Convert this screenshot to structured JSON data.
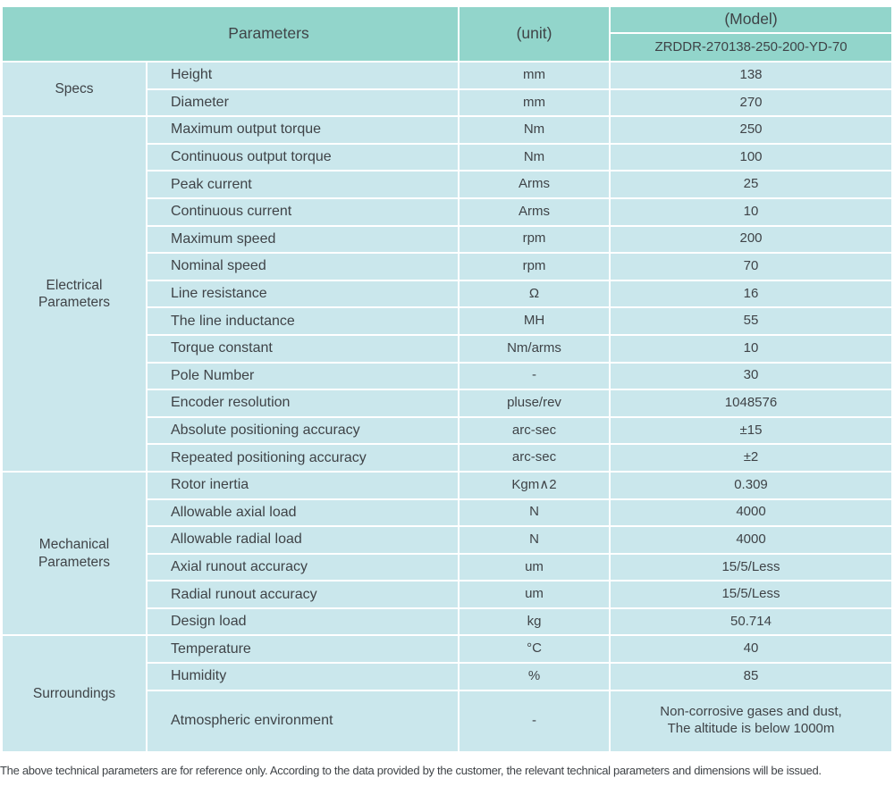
{
  "colors": {
    "header_bg": "#92d5cb",
    "cell_bg": "#cae7ec",
    "separator": "#ffffff",
    "text": "#3f4347"
  },
  "header": {
    "parameters_label": "Parameters",
    "unit_label": "(unit)",
    "model_label": "(Model)",
    "model_code": "ZRDDR-270138-250-200-YD-70"
  },
  "sections": [
    {
      "group": "Specs",
      "rows": [
        {
          "param": "Height",
          "unit": "mm",
          "value": "138"
        },
        {
          "param": "Diameter",
          "unit": "mm",
          "value": "270"
        }
      ]
    },
    {
      "group": "Electrical\nParameters",
      "rows": [
        {
          "param": "Maximum output torque",
          "unit": "Nm",
          "value": "250"
        },
        {
          "param": "Continuous output torque",
          "unit": "Nm",
          "value": "100"
        },
        {
          "param": "Peak current",
          "unit": "Arms",
          "value": "25"
        },
        {
          "param": "Continuous current",
          "unit": "Arms",
          "value": "10"
        },
        {
          "param": "Maximum speed",
          "unit": "rpm",
          "value": "200"
        },
        {
          "param": "Nominal speed",
          "unit": "rpm",
          "value": "70"
        },
        {
          "param": "Line resistance",
          "unit": "Ω",
          "value": "16"
        },
        {
          "param": "The line inductance",
          "unit": "MH",
          "value": "55"
        },
        {
          "param": "Torque constant",
          "unit": "Nm/arms",
          "value": "10"
        },
        {
          "param": "Pole Number",
          "unit": "-",
          "value": "30"
        },
        {
          "param": "Encoder resolution",
          "unit": "pluse/rev",
          "value": "1048576"
        },
        {
          "param": "Absolute positioning accuracy",
          "unit": "arc-sec",
          "value": "±15"
        },
        {
          "param": "Repeated positioning accuracy",
          "unit": "arc-sec",
          "value": "±2"
        }
      ]
    },
    {
      "group": "Mechanical\nParameters",
      "rows": [
        {
          "param": "Rotor inertia",
          "unit": "Kgm∧2",
          "value": "0.309"
        },
        {
          "param": "Allowable axial load",
          "unit": "N",
          "value": "4000"
        },
        {
          "param": "Allowable radial load",
          "unit": "N",
          "value": "4000"
        },
        {
          "param": "Axial runout accuracy",
          "unit": "um",
          "value": "15/5/Less"
        },
        {
          "param": "Radial runout accuracy",
          "unit": "um",
          "value": "15/5/Less"
        },
        {
          "param": "Design load",
          "unit": "kg",
          "value": "50.714"
        }
      ]
    },
    {
      "group": "Surroundings",
      "rows": [
        {
          "param": "Temperature",
          "unit": "°C",
          "value": "40"
        },
        {
          "param": "Humidity",
          "unit": "%",
          "value": "85"
        },
        {
          "param": "Atmospheric environment",
          "unit": "-",
          "value": "Non-corrosive gases and dust,\nThe altitude is below 1000m"
        }
      ]
    }
  ],
  "footer": {
    "note": "The above technical parameters are for reference only. According to the data provided by the customer, the relevant technical parameters and dimensions will be issued."
  }
}
